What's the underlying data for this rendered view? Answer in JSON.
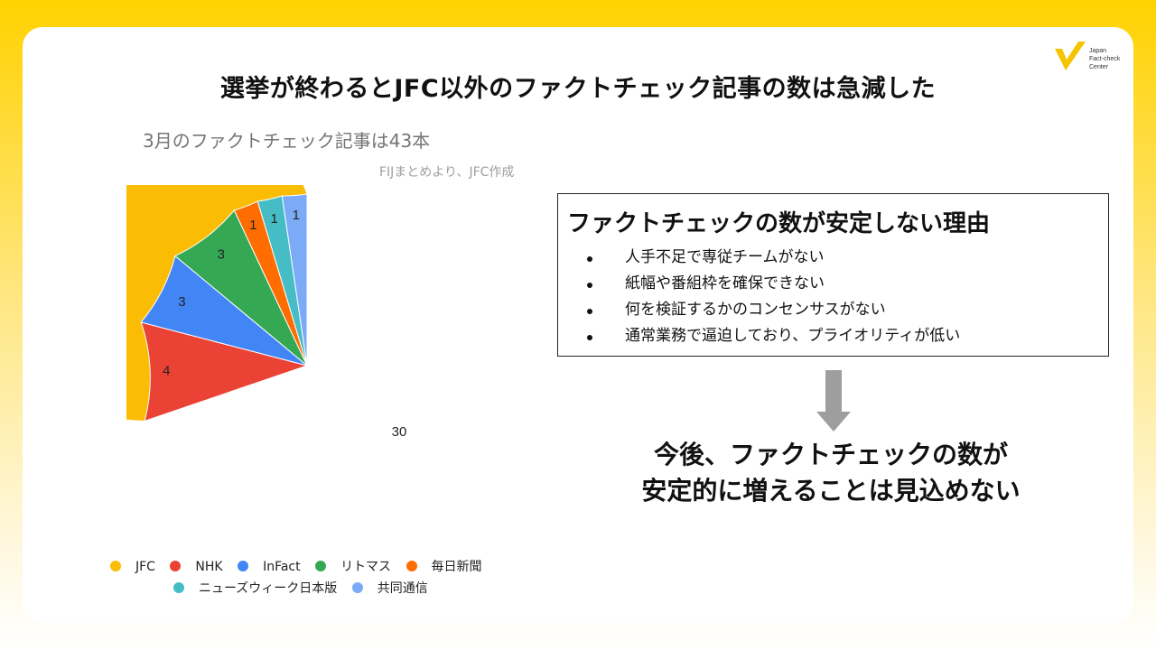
{
  "headline": "選挙が終わるとJFC以外のファクトチェック記事の数は急減した",
  "logo": {
    "lines": [
      "Japan",
      "Fact-check",
      "Center"
    ],
    "color": "#F5C400"
  },
  "chart_data": {
    "type": "pie",
    "title": "3月のファクトチェック記事は43本",
    "subtitle": "FIJまとめより、JFC作成",
    "categories": [
      "JFC",
      "NHK",
      "InFact",
      "リトマス",
      "毎日新聞",
      "ニューズウィーク日本版",
      "共同通信"
    ],
    "values": [
      30,
      4,
      3,
      3,
      1,
      1,
      1
    ],
    "colors": [
      "#FBBC04",
      "#EA4335",
      "#4285F4",
      "#34A853",
      "#FF6D01",
      "#46BDC6",
      "#7BAAF7"
    ],
    "legend_position": "bottom"
  },
  "reasons": {
    "title": "ファクトチェックの数が安定しない理由",
    "items": [
      "人手不足で専従チームがない",
      "紙幅や番組枠を確保できない",
      "何を検証するかのコンセンサスがない",
      "通常業務で逼迫しており、プライオリティが低い"
    ]
  },
  "conclusion": {
    "line1": "今後、ファクトチェックの数が",
    "line2": "安定的に増えることは見込めない"
  }
}
